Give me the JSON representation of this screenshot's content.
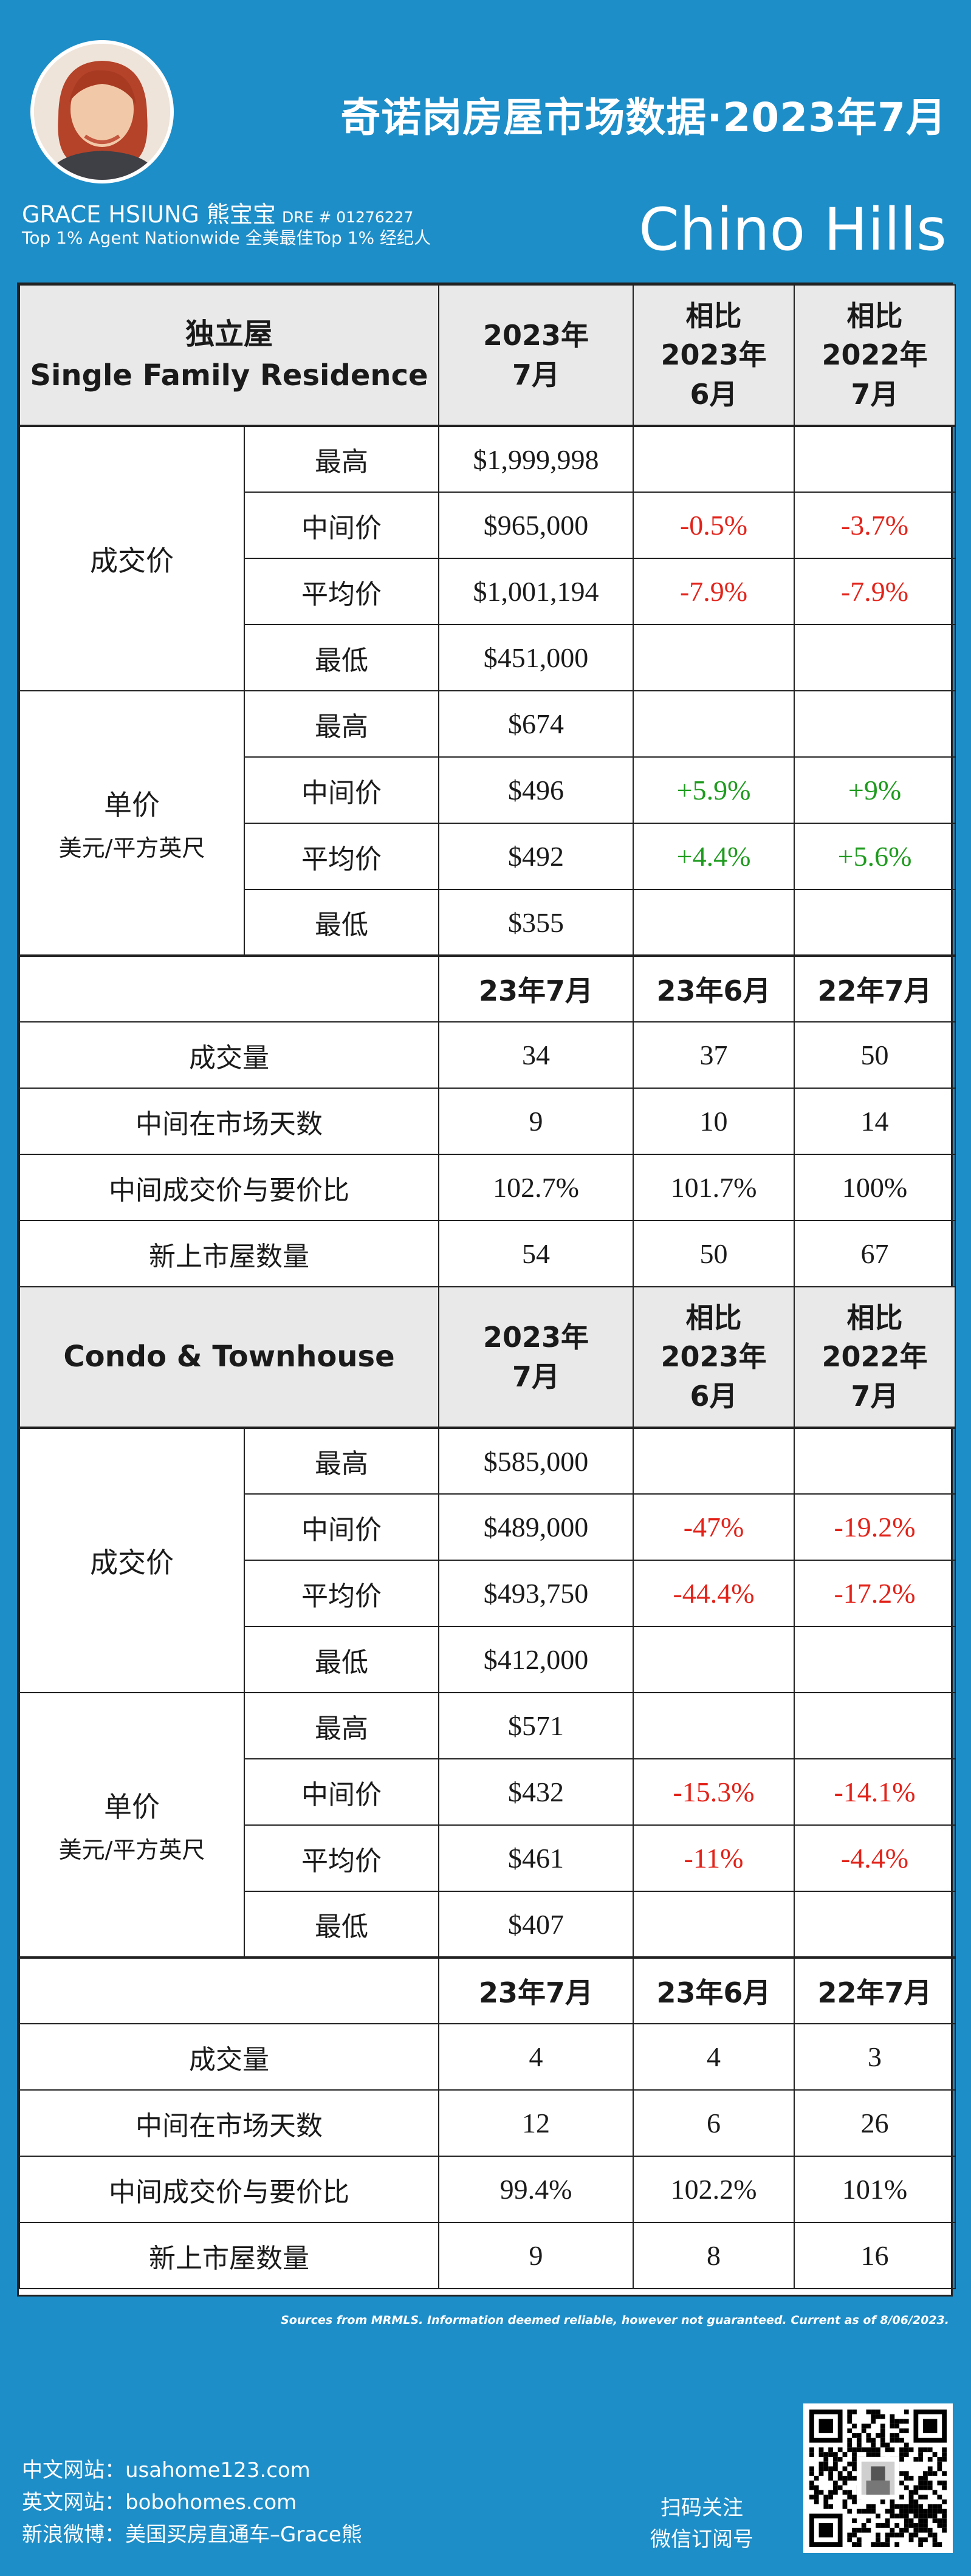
{
  "header": {
    "title": "奇诺岗房屋市场数据·2023年7月",
    "agent_name": "GRACE HSIUNG 熊宝宝",
    "dre": "DRE # 01276227",
    "agent_tagline": "Top 1% Agent Nationwide  全美最佳Top 1% 经纪人",
    "city": "Chino Hills"
  },
  "sfr": {
    "type_cn": "独立屋",
    "type_en": "Single Family Residence",
    "col_period": "2023年\n7月",
    "col_vs_june": "相比\n2023年\n6月",
    "col_vs_2022": "相比\n2022年\n7月",
    "price_label": "成交价",
    "psf_label": "单价",
    "psf_unit": "美元/平方英尺",
    "price_rows": [
      {
        "metric": "最高",
        "value": "$1,999,998",
        "mom": "",
        "yoy": ""
      },
      {
        "metric": "中间价",
        "value": "$965,000",
        "mom": "-0.5%",
        "yoy": "-3.7%"
      },
      {
        "metric": "平均价",
        "value": "$1,001,194",
        "mom": "-7.9%",
        "yoy": "-7.9%"
      },
      {
        "metric": "最低",
        "value": "$451,000",
        "mom": "",
        "yoy": ""
      }
    ],
    "psf_rows": [
      {
        "metric": "最高",
        "value": "$674",
        "mom": "",
        "yoy": ""
      },
      {
        "metric": "中间价",
        "value": "$496",
        "mom": "+5.9%",
        "yoy": "+9%"
      },
      {
        "metric": "平均价",
        "value": "$492",
        "mom": "+4.4%",
        "yoy": "+5.6%"
      },
      {
        "metric": "最低",
        "value": "$355",
        "mom": "",
        "yoy": ""
      }
    ],
    "stats_header": [
      "23年7月",
      "23年6月",
      "22年7月"
    ],
    "stats_rows": [
      {
        "label": "成交量",
        "jul23": "34",
        "jun23": "37",
        "jul22": "50"
      },
      {
        "label": "中间在市场天数",
        "jul23": "9",
        "jun23": "10",
        "jul22": "14"
      },
      {
        "label": "中间成交价与要价比",
        "jul23": "102.7%",
        "jun23": "101.7%",
        "jul22": "100%"
      },
      {
        "label": "新上市屋数量",
        "jul23": "54",
        "jun23": "50",
        "jul22": "67"
      }
    ]
  },
  "condo": {
    "type_en": "Condo & Townhouse",
    "col_period": "2023年\n7月",
    "col_vs_june": "相比\n2023年\n6月",
    "col_vs_2022": "相比\n2022年\n7月",
    "price_label": "成交价",
    "psf_label": "单价",
    "psf_unit": "美元/平方英尺",
    "price_rows": [
      {
        "metric": "最高",
        "value": "$585,000",
        "mom": "",
        "yoy": ""
      },
      {
        "metric": "中间价",
        "value": "$489,000",
        "mom": "-47%",
        "yoy": "-19.2%"
      },
      {
        "metric": "平均价",
        "value": "$493,750",
        "mom": "-44.4%",
        "yoy": "-17.2%"
      },
      {
        "metric": "最低",
        "value": "$412,000",
        "mom": "",
        "yoy": ""
      }
    ],
    "psf_rows": [
      {
        "metric": "最高",
        "value": "$571",
        "mom": "",
        "yoy": ""
      },
      {
        "metric": "中间价",
        "value": "$432",
        "mom": "-15.3%",
        "yoy": "-14.1%"
      },
      {
        "metric": "平均价",
        "value": "$461",
        "mom": "-11%",
        "yoy": "-4.4%"
      },
      {
        "metric": "最低",
        "value": "$407",
        "mom": "",
        "yoy": ""
      }
    ],
    "stats_header": [
      "23年7月",
      "23年6月",
      "22年7月"
    ],
    "stats_rows": [
      {
        "label": "成交量",
        "jul23": "4",
        "jun23": "4",
        "jul22": "3"
      },
      {
        "label": "中间在市场天数",
        "jul23": "12",
        "jun23": "6",
        "jul22": "26"
      },
      {
        "label": "中间成交价与要价比",
        "jul23": "99.4%",
        "jun23": "102.2%",
        "jul22": "101%"
      },
      {
        "label": "新上市屋数量",
        "jul23": "9",
        "jun23": "8",
        "jul22": "16"
      }
    ]
  },
  "footer": {
    "sources": "Sources from MRMLS. Information deemed reliable, however not guaranteed. Current as of 8/06/2023.",
    "cn_site": "中文网站：usahome123.com",
    "en_site": "英文网站：bobohomes.com",
    "weibo": "新浪微博：美国买房直通车–Grace熊",
    "qr_label_1": "扫码关注",
    "qr_label_2": "微信订阅号"
  },
  "colors": {
    "background": "#1e8ec8",
    "negative": "#e2231a",
    "positive": "#1e9b1e",
    "header_row": "#e9e9e9"
  }
}
